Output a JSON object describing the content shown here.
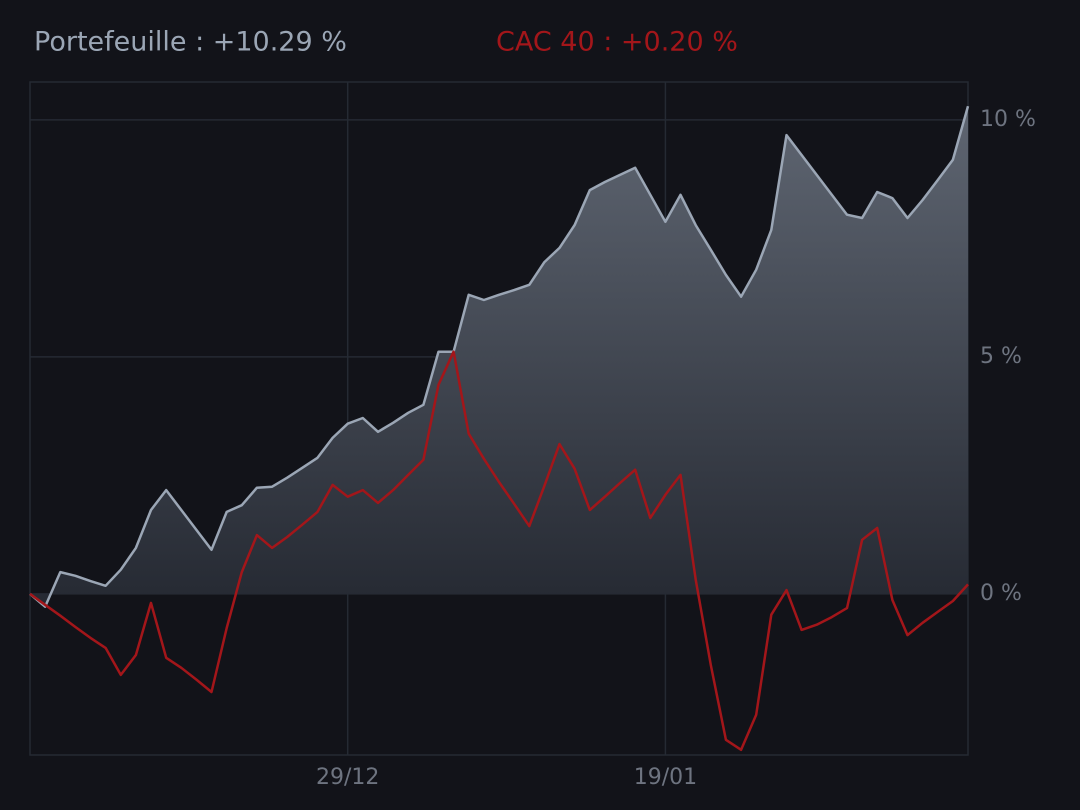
{
  "chart_data": {
    "type": "line",
    "x": [
      0,
      1,
      2,
      3,
      4,
      5,
      6,
      7,
      8,
      9,
      10,
      11,
      12,
      13,
      14,
      15,
      16,
      17,
      18,
      19,
      20,
      21,
      22,
      23,
      24,
      25,
      26,
      27,
      28,
      29,
      30,
      31,
      32,
      33,
      34,
      35,
      36,
      37,
      38,
      39,
      40,
      41,
      42,
      43,
      44,
      45,
      46,
      47,
      48,
      49,
      50,
      51,
      52,
      53,
      54,
      55,
      56,
      57,
      58,
      59,
      60,
      61,
      62
    ],
    "xlim": [
      0,
      62
    ],
    "xticks": [
      {
        "value": 21,
        "label": "29/12"
      },
      {
        "value": 42,
        "label": "19/01"
      }
    ],
    "ylim": [
      -3.4,
      10.8
    ],
    "yticks": [
      {
        "value": 10,
        "label": "10 %"
      },
      {
        "value": 5,
        "label": "5 %"
      },
      {
        "value": 0,
        "label": "0 %"
      }
    ],
    "grid": true,
    "series": [
      {
        "name": "Portefeuille : +10.29 %",
        "color": "#9ba6b5",
        "area": true,
        "values": [
          0,
          -0.27,
          0.46,
          0.38,
          0.27,
          0.17,
          0.51,
          0.97,
          1.77,
          2.19,
          1.77,
          1.35,
          0.93,
          1.73,
          1.87,
          2.24,
          2.26,
          2.45,
          2.66,
          2.87,
          3.29,
          3.59,
          3.71,
          3.42,
          3.61,
          3.82,
          3.99,
          5.11,
          5.11,
          6.31,
          6.2,
          6.31,
          6.41,
          6.52,
          7.0,
          7.3,
          7.78,
          8.52,
          8.69,
          8.84,
          8.99,
          8.42,
          7.85,
          8.42,
          7.78,
          7.26,
          6.73,
          6.27,
          6.84,
          7.68,
          9.68,
          9.26,
          8.84,
          8.42,
          8.0,
          7.93,
          8.48,
          8.35,
          7.93,
          8.31,
          8.73,
          9.16,
          10.29
        ]
      },
      {
        "name": "CAC 40 : +0.20 %",
        "color": "#a3161a",
        "area": false,
        "values": [
          0,
          -0.23,
          -0.46,
          -0.7,
          -0.93,
          -1.14,
          -1.71,
          -1.29,
          -0.19,
          -1.35,
          -1.56,
          -1.81,
          -2.07,
          -0.72,
          0.46,
          1.24,
          0.97,
          1.2,
          1.46,
          1.73,
          2.3,
          2.05,
          2.19,
          1.92,
          2.19,
          2.51,
          2.83,
          4.41,
          5.11,
          3.38,
          2.85,
          2.36,
          1.9,
          1.43,
          2.28,
          3.16,
          2.64,
          1.77,
          2.05,
          2.34,
          2.62,
          1.6,
          2.09,
          2.51,
          0.3,
          -1.5,
          -3.08,
          -3.29,
          -2.55,
          -0.44,
          0.08,
          -0.76,
          -0.65,
          -0.49,
          -0.3,
          1.14,
          1.39,
          -0.13,
          -0.87,
          -0.61,
          -0.38,
          -0.15,
          0.2
        ]
      }
    ]
  }
}
